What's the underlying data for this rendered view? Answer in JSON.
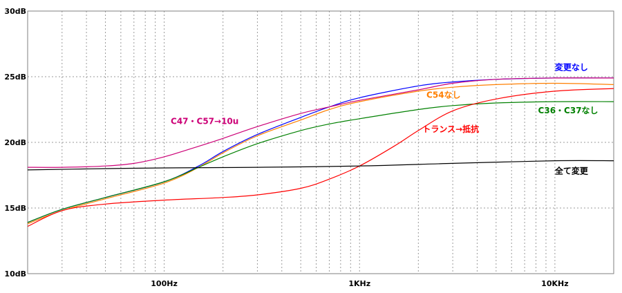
{
  "chart_data": {
    "type": "line",
    "title": "",
    "xlabel": "",
    "ylabel": "",
    "x_scale": "log",
    "xlim": [
      20,
      20000
    ],
    "ylim": [
      10,
      30
    ],
    "grid": true,
    "x_ticks": [
      {
        "value": 100,
        "label": "100Hz"
      },
      {
        "value": 1000,
        "label": "1KHz"
      },
      {
        "value": 10000,
        "label": "10KHz"
      }
    ],
    "y_ticks": [
      {
        "value": 10,
        "label": "10dB"
      },
      {
        "value": 15,
        "label": "15dB"
      },
      {
        "value": 20,
        "label": "20dB"
      },
      {
        "value": 25,
        "label": "25dB"
      },
      {
        "value": 30,
        "label": "30dB"
      }
    ],
    "series": [
      {
        "name": "変更なし",
        "color": "#0000ff",
        "points": [
          [
            20,
            13.9
          ],
          [
            30,
            14.9
          ],
          [
            50,
            15.8
          ],
          [
            100,
            17.0
          ],
          [
            150,
            18.2
          ],
          [
            200,
            19.3
          ],
          [
            300,
            20.6
          ],
          [
            500,
            21.9
          ],
          [
            700,
            22.7
          ],
          [
            1000,
            23.4
          ],
          [
            2000,
            24.3
          ],
          [
            3000,
            24.6
          ],
          [
            5000,
            24.8
          ],
          [
            10000,
            24.9
          ],
          [
            20000,
            24.9
          ]
        ],
        "label_at": [
          10000,
          25.5
        ]
      },
      {
        "name": "C54なし",
        "color": "#ff7f00",
        "points": [
          [
            20,
            13.8
          ],
          [
            30,
            14.8
          ],
          [
            50,
            15.7
          ],
          [
            100,
            16.9
          ],
          [
            150,
            18.1
          ],
          [
            200,
            19.2
          ],
          [
            300,
            20.5
          ],
          [
            500,
            21.7
          ],
          [
            700,
            22.5
          ],
          [
            1000,
            23.1
          ],
          [
            2000,
            23.9
          ],
          [
            3000,
            24.2
          ],
          [
            5000,
            24.4
          ],
          [
            10000,
            24.5
          ],
          [
            20000,
            24.4
          ]
        ],
        "label_at": [
          2200,
          23.4
        ]
      },
      {
        "name": "C36・C37なし",
        "color": "#008000",
        "points": [
          [
            20,
            13.9
          ],
          [
            30,
            14.9
          ],
          [
            50,
            15.8
          ],
          [
            100,
            17.0
          ],
          [
            150,
            18.1
          ],
          [
            200,
            18.9
          ],
          [
            300,
            19.9
          ],
          [
            500,
            20.9
          ],
          [
            700,
            21.4
          ],
          [
            1000,
            21.8
          ],
          [
            2000,
            22.5
          ],
          [
            3000,
            22.8
          ],
          [
            5000,
            23.0
          ],
          [
            10000,
            23.1
          ],
          [
            20000,
            23.1
          ]
        ],
        "label_at": [
          8200,
          22.2
        ]
      },
      {
        "name": "トランス→抵抗",
        "color": "#ff0000",
        "points": [
          [
            20,
            13.6
          ],
          [
            30,
            14.8
          ],
          [
            50,
            15.3
          ],
          [
            100,
            15.6
          ],
          [
            200,
            15.8
          ],
          [
            300,
            16.0
          ],
          [
            500,
            16.5
          ],
          [
            700,
            17.2
          ],
          [
            1000,
            18.2
          ],
          [
            1500,
            19.7
          ],
          [
            2000,
            20.9
          ],
          [
            3000,
            22.4
          ],
          [
            5000,
            23.3
          ],
          [
            10000,
            23.9
          ],
          [
            20000,
            24.1
          ]
        ],
        "label_at": [
          2100,
          20.8
        ]
      },
      {
        "name": "C47・C57→10u",
        "color": "#cc0077",
        "points": [
          [
            20,
            18.1
          ],
          [
            30,
            18.1
          ],
          [
            50,
            18.2
          ],
          [
            70,
            18.4
          ],
          [
            100,
            18.9
          ],
          [
            150,
            19.7
          ],
          [
            200,
            20.3
          ],
          [
            300,
            21.2
          ],
          [
            500,
            22.2
          ],
          [
            700,
            22.7
          ],
          [
            1000,
            23.2
          ],
          [
            2000,
            24.0
          ],
          [
            3000,
            24.5
          ],
          [
            5000,
            24.8
          ],
          [
            10000,
            24.9
          ],
          [
            20000,
            24.9
          ]
        ],
        "label_at": [
          108,
          21.4
        ]
      },
      {
        "name": "全て変更",
        "color": "#000000",
        "points": [
          [
            20,
            17.9
          ],
          [
            50,
            18.0
          ],
          [
            100,
            18.05
          ],
          [
            300,
            18.1
          ],
          [
            1000,
            18.2
          ],
          [
            3000,
            18.4
          ],
          [
            10000,
            18.6
          ],
          [
            20000,
            18.6
          ]
        ],
        "label_at": [
          10000,
          17.6
        ]
      }
    ]
  }
}
